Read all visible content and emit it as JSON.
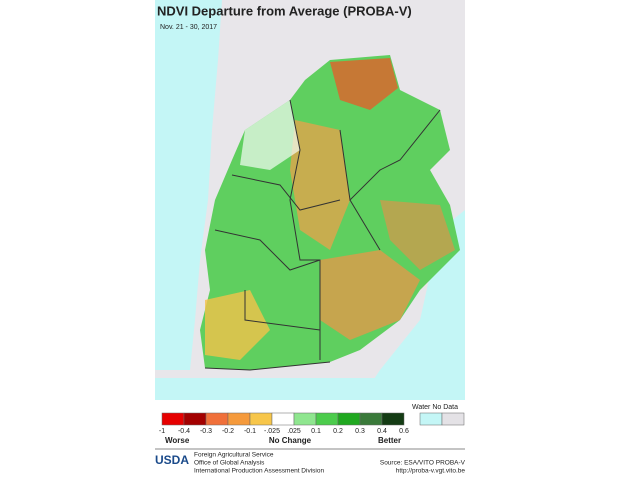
{
  "header": {
    "title": "NDVI  Departure from Average (PROBA-V)",
    "date": "Nov. 21 - 30, 2017"
  },
  "legend": {
    "classes": [
      "#e60000",
      "#a30000",
      "#f0703a",
      "#f59a3c",
      "#f7c64a",
      "#ffffff",
      "#8fe68f",
      "#4ccc4c",
      "#20a820",
      "#3a7a3a",
      "#143c14"
    ],
    "ticks": [
      "-1",
      "-0.4",
      "-0.3",
      "-0.2",
      "-0.1",
      "-.025",
      ".025",
      "0.1",
      "0.2",
      "0.3",
      "0.4",
      "0.6"
    ],
    "water_no_data": "Water No Data",
    "water_color": "#c4f6f6",
    "no_data_color": "#e4e2e6",
    "worse": "Worse",
    "no_change": "No Change",
    "better": "Better"
  },
  "footer": {
    "logo": "USDA",
    "agency": [
      "Foreign Agricultural Service",
      "Office of Global Analysis",
      "International Production Assessment Division"
    ],
    "source": "Source: ESA/VITO PROBA-V",
    "url": "http://proba-v.vgt.vito.be"
  }
}
